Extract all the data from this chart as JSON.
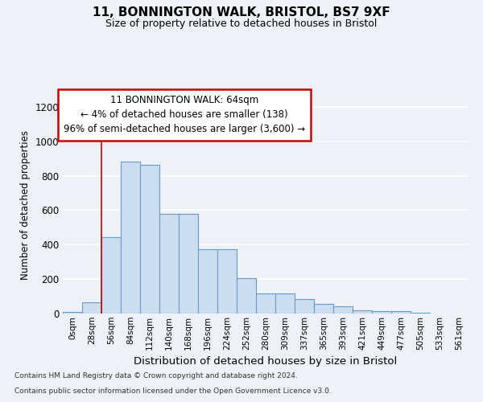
{
  "title1": "11, BONNINGTON WALK, BRISTOL, BS7 9XF",
  "title2": "Size of property relative to detached houses in Bristol",
  "xlabel": "Distribution of detached houses by size in Bristol",
  "ylabel": "Number of detached properties",
  "bar_color": "#ccddf0",
  "bar_edge_color": "#6699cc",
  "categories": [
    "0sqm",
    "28sqm",
    "56sqm",
    "84sqm",
    "112sqm",
    "140sqm",
    "168sqm",
    "196sqm",
    "224sqm",
    "252sqm",
    "280sqm",
    "309sqm",
    "337sqm",
    "365sqm",
    "393sqm",
    "421sqm",
    "449sqm",
    "477sqm",
    "505sqm",
    "533sqm",
    "561sqm"
  ],
  "values": [
    10,
    65,
    445,
    880,
    865,
    580,
    580,
    375,
    375,
    205,
    115,
    115,
    85,
    55,
    42,
    20,
    15,
    15,
    5,
    2,
    2
  ],
  "ylim": [
    0,
    1260
  ],
  "yticks": [
    0,
    200,
    400,
    600,
    800,
    1000,
    1200
  ],
  "annotation_line1": "11 BONNINGTON WALK: 64sqm",
  "annotation_line2": "← 4% of detached houses are smaller (138)",
  "annotation_line3": "96% of semi-detached houses are larger (3,600) →",
  "annotation_box_color": "#ffffff",
  "annotation_box_edge": "#cc0000",
  "property_line_x": 1.5,
  "footer1": "Contains HM Land Registry data © Crown copyright and database right 2024.",
  "footer2": "Contains public sector information licensed under the Open Government Licence v3.0.",
  "background_color": "#eef2f8",
  "grid_color": "#ffffff"
}
